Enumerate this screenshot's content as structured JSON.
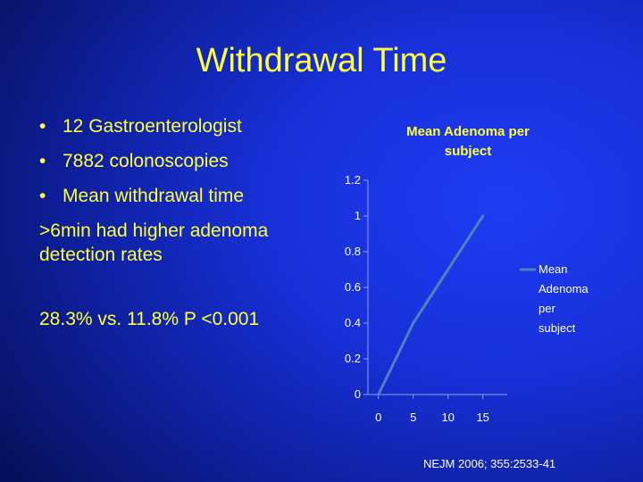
{
  "slide": {
    "title": "Withdrawal Time",
    "bullets": [
      "12 Gastroenterologist",
      "7882 colonoscopies",
      "Mean withdrawal time"
    ],
    "paragraph_1": ">6min had higher adenoma detection rates",
    "paragraph_2": "28.3% vs. 11.8% P <0.001",
    "citation": "NEJM 2006; 355:2533-41",
    "colors": {
      "text": "#ffff3c",
      "background": "#1730d8",
      "line": "#4f81bd"
    }
  },
  "chart_data": {
    "type": "line",
    "title": "Mean Adenoma per subject",
    "title_lines": [
      "Mean Adenoma per",
      "subject"
    ],
    "x": [
      0,
      5,
      10,
      15
    ],
    "series": [
      {
        "name": "Mean Adenoma per subject",
        "legend_lines": [
          "Mean",
          "Adenoma",
          "per",
          "subject"
        ],
        "values": [
          0,
          0.4,
          0.7,
          1.0
        ]
      }
    ],
    "x_ticks": [
      "0",
      "5",
      "10",
      "15"
    ],
    "y_ticks": [
      "0",
      "0.2",
      "0.4",
      "0.6",
      "0.8",
      "1",
      "1.2"
    ],
    "ylim": [
      0,
      1.2
    ],
    "grid": false,
    "legend": "right"
  }
}
